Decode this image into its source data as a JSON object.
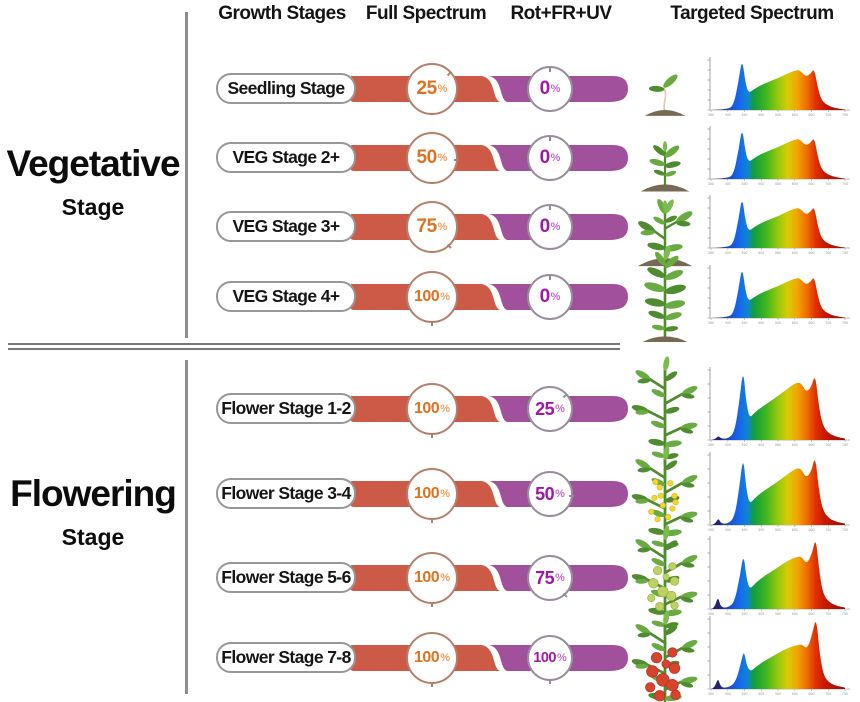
{
  "headers": {
    "growth_stages": "Growth Stages",
    "full_spectrum": "Full Spectrum",
    "rot_fr_uv": "Rot+FR+UV",
    "targeted_spectrum": "Targeted Spectrum"
  },
  "sections": [
    {
      "title": "Vegetative",
      "subtitle": "Stage"
    },
    {
      "title": "Flowering",
      "subtitle": "Stage"
    }
  ],
  "units": {
    "percent": "%"
  },
  "theme": {
    "bar_orange": "#cd5a47",
    "bar_purple": "#a1509c",
    "pct_orange": "#e0711d",
    "pct_orange_sign": "#eca05e",
    "pct_purple": "#a018a8",
    "pct_purple_sign": "#c36fc9",
    "circle_border_orange": "#b5806a",
    "circle_border_purple": "#998d9d",
    "capsule_border": "#979797",
    "divider_gray": "#8d8d8d",
    "text_black": "#141414",
    "soil_brown": "#776a54",
    "leaf_green": "#69ab41",
    "leaf_dark": "#4e8c2f",
    "leaf_light": "#7cbb4e",
    "stem_green": "#4e8c2f",
    "flower_yellow": "#f1d637",
    "fruit_green": "#bed263",
    "fruit_red": "#d6432e"
  },
  "rows": [
    {
      "section": "vegetative",
      "label": "Seedling Stage",
      "full_pct": "25",
      "uv_pct": "0",
      "plant_icon": "seedling-in-soil"
    },
    {
      "section": "vegetative",
      "label": "VEG Stage  2+",
      "full_pct": "50",
      "uv_pct": "0",
      "plant_icon": "young-plant-in-soil"
    },
    {
      "section": "vegetative",
      "label": "VEG Stage  3+",
      "full_pct": "75",
      "uv_pct": "0",
      "plant_icon": "bushy-plant-in-soil"
    },
    {
      "section": "vegetative",
      "label": "VEG Stage  4+",
      "full_pct": "100",
      "uv_pct": "0",
      "plant_icon": "tall-leafy-plant-in-soil"
    },
    {
      "section": "flowering",
      "label": "Flower Stage 1-2",
      "full_pct": "100",
      "uv_pct": "25",
      "plant_icon": "branching-leafy-plant"
    },
    {
      "section": "flowering",
      "label": "Flower Stage 3-4",
      "full_pct": "100",
      "uv_pct": "50",
      "plant_icon": "plant-with-yellow-flowers"
    },
    {
      "section": "flowering",
      "label": "Flower Stage  5-6",
      "full_pct": "100",
      "uv_pct": "75",
      "plant_icon": "plant-with-green-tomatoes"
    },
    {
      "section": "flowering",
      "label": "Flower Stage 7-8",
      "full_pct": "100",
      "uv_pct": "100",
      "plant_icon": "plant-with-red-tomatoes"
    }
  ],
  "chart_axis": {
    "x_ticks": [
      350,
      400,
      450,
      500,
      550,
      600,
      650,
      700,
      750
    ],
    "y_tick_count": 6
  },
  "chart_data": [
    {
      "type": "area",
      "stage": "Seedling Stage",
      "full_spectrum_pct": 25,
      "rot_fr_uv_pct": 0,
      "x_range": [
        350,
        750
      ],
      "profile": [
        [
          350,
          0
        ],
        [
          400,
          0.01
        ],
        [
          418,
          0.1
        ],
        [
          432,
          0.55
        ],
        [
          443,
          1.0
        ],
        [
          452,
          0.55
        ],
        [
          462,
          0.32
        ],
        [
          478,
          0.4
        ],
        [
          500,
          0.48
        ],
        [
          525,
          0.55
        ],
        [
          552,
          0.62
        ],
        [
          578,
          0.7
        ],
        [
          600,
          0.76
        ],
        [
          615,
          0.77
        ],
        [
          632,
          0.64
        ],
        [
          648,
          0.7
        ],
        [
          658,
          0.8
        ],
        [
          668,
          0.45
        ],
        [
          680,
          0.18
        ],
        [
          700,
          0.08
        ],
        [
          725,
          0.03
        ],
        [
          750,
          0.01
        ]
      ]
    },
    {
      "type": "area",
      "stage": "VEG Stage 2+",
      "full_spectrum_pct": 50,
      "rot_fr_uv_pct": 0,
      "x_range": [
        350,
        750
      ],
      "profile": [
        [
          350,
          0
        ],
        [
          400,
          0.01
        ],
        [
          418,
          0.1
        ],
        [
          432,
          0.55
        ],
        [
          443,
          1.0
        ],
        [
          452,
          0.55
        ],
        [
          462,
          0.32
        ],
        [
          478,
          0.4
        ],
        [
          500,
          0.48
        ],
        [
          525,
          0.55
        ],
        [
          552,
          0.62
        ],
        [
          578,
          0.7
        ],
        [
          600,
          0.76
        ],
        [
          615,
          0.77
        ],
        [
          632,
          0.64
        ],
        [
          648,
          0.7
        ],
        [
          658,
          0.8
        ],
        [
          668,
          0.45
        ],
        [
          680,
          0.18
        ],
        [
          700,
          0.08
        ],
        [
          725,
          0.03
        ],
        [
          750,
          0.01
        ]
      ]
    },
    {
      "type": "area",
      "stage": "VEG Stage 3+",
      "full_spectrum_pct": 75,
      "rot_fr_uv_pct": 0,
      "x_range": [
        350,
        750
      ],
      "profile": [
        [
          350,
          0
        ],
        [
          400,
          0.01
        ],
        [
          418,
          0.1
        ],
        [
          432,
          0.55
        ],
        [
          443,
          1.0
        ],
        [
          452,
          0.55
        ],
        [
          462,
          0.32
        ],
        [
          478,
          0.4
        ],
        [
          500,
          0.48
        ],
        [
          525,
          0.55
        ],
        [
          552,
          0.62
        ],
        [
          578,
          0.7
        ],
        [
          600,
          0.76
        ],
        [
          615,
          0.77
        ],
        [
          632,
          0.64
        ],
        [
          648,
          0.7
        ],
        [
          658,
          0.8
        ],
        [
          668,
          0.45
        ],
        [
          680,
          0.18
        ],
        [
          700,
          0.08
        ],
        [
          725,
          0.03
        ],
        [
          750,
          0.01
        ]
      ]
    },
    {
      "type": "area",
      "stage": "VEG Stage 4+",
      "full_spectrum_pct": 100,
      "rot_fr_uv_pct": 0,
      "x_range": [
        350,
        750
      ],
      "profile": [
        [
          350,
          0
        ],
        [
          400,
          0.01
        ],
        [
          418,
          0.1
        ],
        [
          432,
          0.55
        ],
        [
          443,
          1.0
        ],
        [
          452,
          0.55
        ],
        [
          462,
          0.32
        ],
        [
          478,
          0.4
        ],
        [
          500,
          0.48
        ],
        [
          525,
          0.55
        ],
        [
          552,
          0.62
        ],
        [
          578,
          0.7
        ],
        [
          600,
          0.76
        ],
        [
          615,
          0.77
        ],
        [
          632,
          0.64
        ],
        [
          648,
          0.7
        ],
        [
          658,
          0.8
        ],
        [
          668,
          0.45
        ],
        [
          680,
          0.18
        ],
        [
          700,
          0.08
        ],
        [
          725,
          0.03
        ],
        [
          750,
          0.01
        ]
      ]
    },
    {
      "type": "area",
      "stage": "Flower Stage 1-2",
      "full_spectrum_pct": 100,
      "rot_fr_uv_pct": 25,
      "x_range": [
        350,
        750
      ],
      "profile": [
        [
          350,
          0
        ],
        [
          362,
          0.01
        ],
        [
          372,
          0.06
        ],
        [
          380,
          0.02
        ],
        [
          400,
          0.02
        ],
        [
          420,
          0.1
        ],
        [
          435,
          0.55
        ],
        [
          446,
          1.0
        ],
        [
          455,
          0.52
        ],
        [
          465,
          0.3
        ],
        [
          480,
          0.38
        ],
        [
          502,
          0.46
        ],
        [
          528,
          0.54
        ],
        [
          555,
          0.63
        ],
        [
          580,
          0.72
        ],
        [
          602,
          0.79
        ],
        [
          618,
          0.8
        ],
        [
          634,
          0.66
        ],
        [
          650,
          0.74
        ],
        [
          661,
          0.92
        ],
        [
          671,
          0.5
        ],
        [
          683,
          0.2
        ],
        [
          702,
          0.09
        ],
        [
          726,
          0.04
        ],
        [
          750,
          0.02
        ]
      ]
    },
    {
      "type": "area",
      "stage": "Flower Stage 3-4",
      "full_spectrum_pct": 100,
      "rot_fr_uv_pct": 50,
      "x_range": [
        350,
        750
      ],
      "profile": [
        [
          350,
          0
        ],
        [
          362,
          0.01
        ],
        [
          372,
          0.1
        ],
        [
          380,
          0.02
        ],
        [
          400,
          0.02
        ],
        [
          420,
          0.1
        ],
        [
          435,
          0.53
        ],
        [
          446,
          0.97
        ],
        [
          455,
          0.5
        ],
        [
          465,
          0.29
        ],
        [
          480,
          0.37
        ],
        [
          500,
          0.45
        ],
        [
          526,
          0.53
        ],
        [
          554,
          0.62
        ],
        [
          580,
          0.71
        ],
        [
          602,
          0.78
        ],
        [
          618,
          0.79
        ],
        [
          634,
          0.65
        ],
        [
          650,
          0.75
        ],
        [
          661,
          0.97
        ],
        [
          671,
          0.52
        ],
        [
          683,
          0.21
        ],
        [
          702,
          0.09
        ],
        [
          726,
          0.04
        ],
        [
          750,
          0.02
        ]
      ]
    },
    {
      "type": "area",
      "stage": "Flower Stage 5-6",
      "full_spectrum_pct": 100,
      "rot_fr_uv_pct": 75,
      "x_range": [
        350,
        750
      ],
      "profile": [
        [
          350,
          0
        ],
        [
          360,
          0.01
        ],
        [
          371,
          0.18
        ],
        [
          379,
          0.02
        ],
        [
          400,
          0.02
        ],
        [
          420,
          0.09
        ],
        [
          436,
          0.45
        ],
        [
          447,
          0.78
        ],
        [
          456,
          0.42
        ],
        [
          466,
          0.27
        ],
        [
          482,
          0.36
        ],
        [
          504,
          0.44
        ],
        [
          530,
          0.52
        ],
        [
          557,
          0.6
        ],
        [
          582,
          0.68
        ],
        [
          604,
          0.72
        ],
        [
          620,
          0.73
        ],
        [
          636,
          0.62
        ],
        [
          652,
          0.78
        ],
        [
          663,
          1.0
        ],
        [
          673,
          0.52
        ],
        [
          685,
          0.2
        ],
        [
          704,
          0.09
        ],
        [
          727,
          0.04
        ],
        [
          750,
          0.02
        ]
      ]
    },
    {
      "type": "area",
      "stage": "Flower Stage 7-8",
      "full_spectrum_pct": 100,
      "rot_fr_uv_pct": 100,
      "x_range": [
        350,
        750
      ],
      "profile": [
        [
          350,
          0
        ],
        [
          360,
          0.01
        ],
        [
          371,
          0.16
        ],
        [
          379,
          0.02
        ],
        [
          400,
          0.02
        ],
        [
          422,
          0.08
        ],
        [
          438,
          0.33
        ],
        [
          448,
          0.55
        ],
        [
          457,
          0.32
        ],
        [
          468,
          0.24
        ],
        [
          484,
          0.31
        ],
        [
          506,
          0.38
        ],
        [
          532,
          0.45
        ],
        [
          559,
          0.52
        ],
        [
          584,
          0.58
        ],
        [
          606,
          0.61
        ],
        [
          622,
          0.62
        ],
        [
          638,
          0.55
        ],
        [
          654,
          0.8
        ],
        [
          664,
          1.0
        ],
        [
          674,
          0.5
        ],
        [
          686,
          0.18
        ],
        [
          705,
          0.08
        ],
        [
          728,
          0.04
        ],
        [
          750,
          0.02
        ]
      ]
    }
  ]
}
